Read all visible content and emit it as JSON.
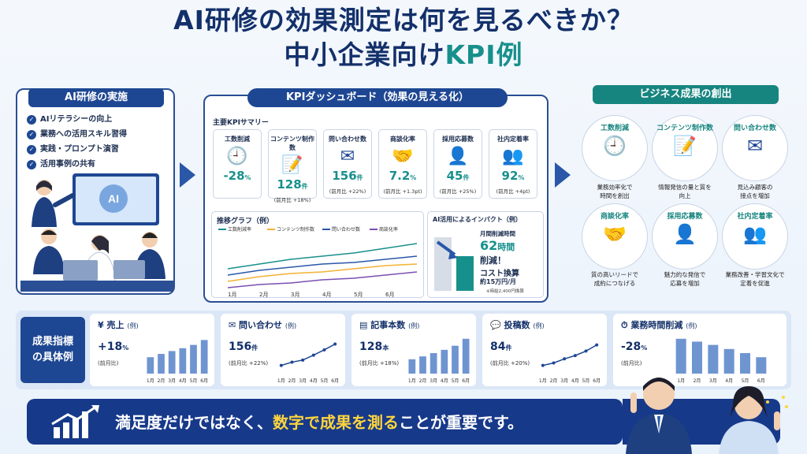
{
  "title": {
    "line1": "AI研修の効果測定は何を見るべきか？",
    "line2_main": "中小企業向け",
    "line2_accent": "KPI例"
  },
  "left_panel": {
    "header": "AI研修の実施",
    "items": [
      "AIリテラシーの向上",
      "業務への活用スキル習得",
      "実践・プロンプト演習",
      "活用事例の共有"
    ],
    "screen_label": "AI"
  },
  "dashboard": {
    "header": "KPIダッシュボード（効果の見える化）",
    "summary_label": "主要KPIサマリー",
    "kpis": [
      {
        "name": "工数削減",
        "icon": "clock-icon",
        "value": "-28",
        "unit": "%",
        "sub": ""
      },
      {
        "name": "コンテンツ制作数",
        "icon": "document-pen-icon",
        "value": "128",
        "unit": "件",
        "sub": "(前月比 +18%)"
      },
      {
        "name": "問い合わせ数",
        "icon": "mail-icon",
        "value": "156",
        "unit": "件",
        "sub": "(前月比 +22%)"
      },
      {
        "name": "商談化率",
        "icon": "handshake-icon",
        "value": "7.2",
        "unit": "%",
        "sub": "(前月比 +1.3pt)"
      },
      {
        "name": "採用応募数",
        "icon": "person-icon",
        "value": "45",
        "unit": "件",
        "sub": "(前月比 +25%)"
      },
      {
        "name": "社内定着率",
        "icon": "team-icon",
        "value": "92",
        "unit": "%",
        "sub": "(前月比 +4pt)"
      }
    ],
    "trend": {
      "title": "推移グラフ（例）",
      "legend": [
        "工数削減率",
        "コンテンツ制作数",
        "問い合わせ数",
        "商談化率"
      ],
      "months": [
        "1月",
        "2月",
        "3月",
        "4月",
        "5月",
        "6月"
      ]
    },
    "impact": {
      "title": "AI活用によるインパクト（例）",
      "line1": "月間削減時間",
      "hours_value": "62",
      "hours_unit": "時間",
      "line2": "削減！",
      "line3": "コスト換算",
      "line4": "約15万円/月",
      "note": "※時給2,400円換算"
    }
  },
  "right_panel": {
    "header": "ビジネス成果の創出",
    "items": [
      {
        "name": "工数削減",
        "icon": "clock-icon",
        "desc1": "業務効率化で",
        "desc2": "時間を創出"
      },
      {
        "name": "コンテンツ制作数",
        "icon": "document-pen-icon",
        "desc1": "情報発信の量と質を",
        "desc2": "向上"
      },
      {
        "name": "問い合わせ数",
        "icon": "mail-icon",
        "desc1": "見込み顧客の",
        "desc2": "接点を増加"
      },
      {
        "name": "商談化率",
        "icon": "handshake-icon",
        "desc1": "質の高いリードで",
        "desc2": "成約につなげる"
      },
      {
        "name": "採用応募数",
        "icon": "person-icon",
        "desc1": "魅力的な発信で",
        "desc2": "応募を増加"
      },
      {
        "name": "社内定着率",
        "icon": "team-icon",
        "desc1": "業務改善・学習文化で",
        "desc2": "定着を促進"
      }
    ]
  },
  "metrics": {
    "header_line1": "成果指標",
    "header_line2": "の具体例",
    "months": [
      "1月",
      "2月",
      "3月",
      "4月",
      "5月",
      "6月"
    ],
    "cards": [
      {
        "title": "売上",
        "title_suffix": "(例)",
        "icon": "yen-icon",
        "value": "+18",
        "unit": "%",
        "sub": "(前月比)",
        "chart": "bar",
        "values": [
          40,
          48,
          55,
          62,
          70,
          82
        ]
      },
      {
        "title": "問い合わせ",
        "title_suffix": "(例)",
        "icon": "mail-icon",
        "value": "156",
        "unit": "件",
        "sub": "(前月比 +22%)",
        "chart": "line",
        "values": [
          20,
          28,
          33,
          45,
          58,
          72
        ]
      },
      {
        "title": "記事本数",
        "title_suffix": "(例)",
        "icon": "document-icon",
        "value": "128",
        "unit": "本",
        "sub": "(前月比 +18%)",
        "chart": "bar",
        "values": [
          35,
          42,
          50,
          58,
          68,
          85
        ]
      },
      {
        "title": "投稿数",
        "title_suffix": "(例)",
        "icon": "chat-icon",
        "value": "84",
        "unit": "件",
        "sub": "(前月比 +20%)",
        "chart": "line",
        "values": [
          20,
          26,
          36,
          44,
          55,
          70
        ]
      },
      {
        "title": "業務時間削減",
        "title_suffix": "(例)",
        "icon": "stopwatch-icon",
        "value": "-28",
        "unit": "%",
        "sub": "(前月比)",
        "chart": "bar",
        "values": [
          85,
          78,
          70,
          60,
          50,
          40
        ]
      }
    ]
  },
  "banner": {
    "pre": "満足度だけではなく、",
    "highlight": "数字で成果を測る",
    "post": "ことが重要です。"
  },
  "colors": {
    "navy": "#1e4793",
    "teal": "#17908c",
    "highlight": "#ffd53d"
  }
}
